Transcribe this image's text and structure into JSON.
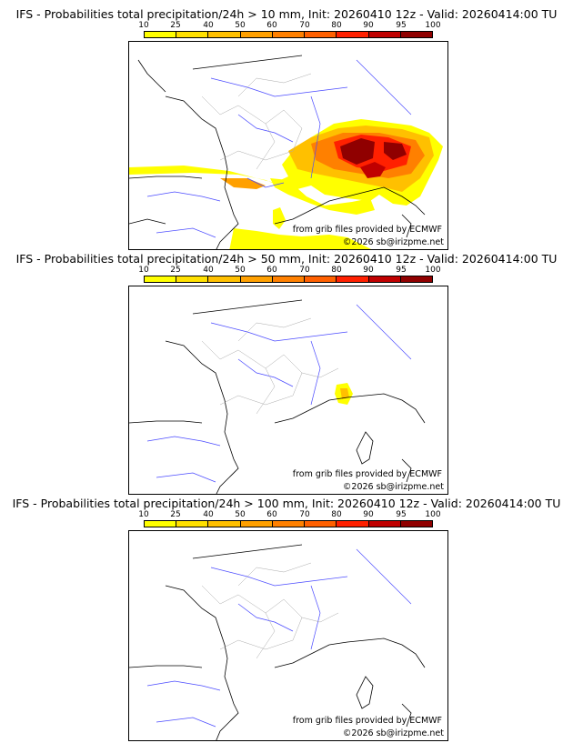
{
  "colorbar": {
    "ticks": [
      "10",
      "25",
      "40",
      "50",
      "60",
      "70",
      "80",
      "90",
      "95",
      "100"
    ],
    "colors": [
      "#ffff00",
      "#ffe000",
      "#ffc000",
      "#ffa000",
      "#ff8000",
      "#ff6000",
      "#ff2000",
      "#c00000",
      "#900000",
      "#600000"
    ]
  },
  "panels": [
    {
      "title": "IFS - Probabilities total precipitation/24h > 10 mm, Init: 20260410 12z - Valid: 20260414:00 TU",
      "source": "from grib files provided by ECMWF",
      "copyright": "©2026 sb@irizpme.net"
    },
    {
      "title": "IFS - Probabilities total precipitation/24h > 50 mm, Init: 20260410 12z - Valid: 20260414:00 TU",
      "source": "from grib files provided by ECMWF",
      "copyright": "©2026 sb@irizpme.net"
    },
    {
      "title": "IFS - Probabilities total precipitation/24h > 100 mm, Init: 20260410 12z - Valid: 20260414:00 TU",
      "source": "from grib files provided by ECMWF",
      "copyright": "©2026 sb@irizpme.net"
    }
  ]
}
